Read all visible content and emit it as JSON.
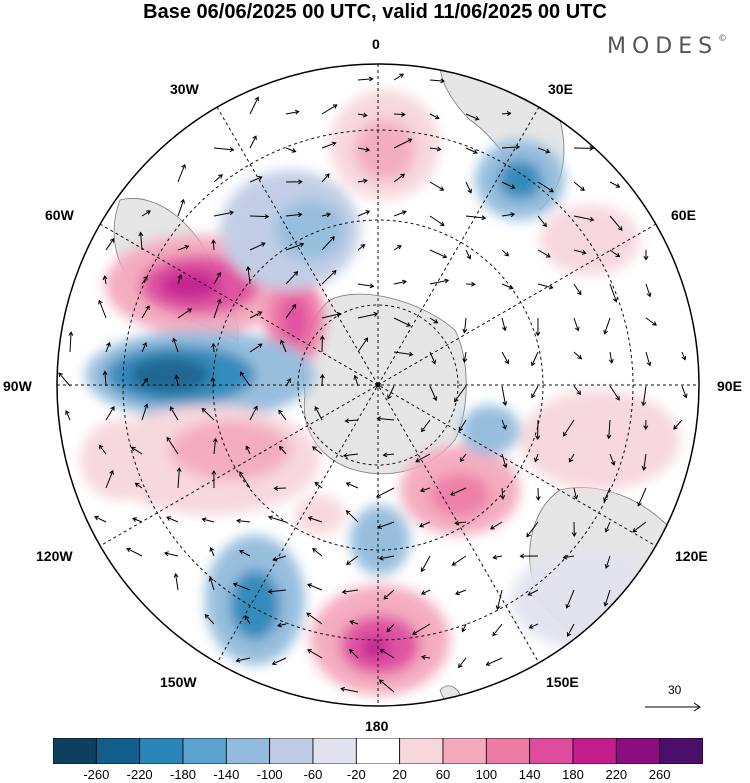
{
  "title": "Base 06/06/2025 00 UTC, valid 11/06/2025 00 UTC",
  "brand": "MODES",
  "brand_mark": "©",
  "longitude_labels": {
    "lon_0": "0",
    "lon_30e": "30E",
    "lon_60e": "60E",
    "lon_90e": "90E",
    "lon_120e": "120E",
    "lon_150e": "150E",
    "lon_180": "180",
    "lon_150w": "150W",
    "lon_120w": "120W",
    "lon_90w": "90W",
    "lon_60w": "60W",
    "lon_30w": "30W"
  },
  "reference_vector": "30",
  "colorbar": {
    "ticks": [
      "-260",
      "-220",
      "-180",
      "-140",
      "-100",
      "-60",
      "-20",
      "20",
      "60",
      "100",
      "140",
      "180",
      "220",
      "260"
    ],
    "colors": [
      "#0d3f5f",
      "#125f8e",
      "#2a86b9",
      "#5aa3cf",
      "#93bbdd",
      "#c0cce5",
      "#e3e3f0",
      "#ffffff",
      "#f7d6dc",
      "#f4a9bd",
      "#ee7aa6",
      "#df4b9d",
      "#c41e8e",
      "#8b0d7f",
      "#4b0e6b"
    ]
  },
  "map_data": {
    "projection": "south polar stereographic",
    "field": "geopotential height anomaly",
    "features": [
      {
        "label": "positive-anomaly",
        "lon": -72,
        "lat": -45,
        "value": 200
      },
      {
        "label": "positive-anomaly",
        "lon": -60,
        "lat": -57,
        "value": 160
      },
      {
        "label": "negative-anomaly",
        "lon": -90,
        "lat": -50,
        "value": -220
      },
      {
        "label": "negative-anomaly",
        "lon": -40,
        "lat": -55,
        "value": -120
      },
      {
        "label": "positive-anomaly",
        "lon": -2,
        "lat": -48,
        "value": 110
      },
      {
        "label": "negative-anomaly",
        "lon": 30,
        "lat": -42,
        "value": -180
      },
      {
        "label": "positive-anomaly",
        "lon": 60,
        "lat": -48,
        "value": 80
      },
      {
        "label": "positive-anomaly",
        "lon": -110,
        "lat": -55,
        "value": 80
      },
      {
        "label": "positive-anomaly",
        "lon": 150,
        "lat": -65,
        "value": 120
      },
      {
        "label": "negative-anomaly",
        "lon": 170,
        "lat": -70,
        "value": -100
      },
      {
        "label": "negative-anomaly",
        "lon": -150,
        "lat": -50,
        "value": -160
      },
      {
        "label": "positive-anomaly",
        "lon": 178,
        "lat": -48,
        "value": 180
      }
    ]
  }
}
